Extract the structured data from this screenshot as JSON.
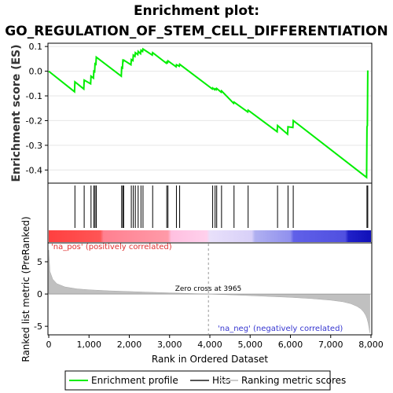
{
  "title_line1": "Enrichment plot:",
  "title_line2": "GO_REGULATION_OF_STEM_CELL_DIFFERENTIATION",
  "es_ylabel": "Enrichment score (ES)",
  "metric_ylabel": "Ranked list metric (PreRanked)",
  "xlabel": "Rank in Ordered Dataset",
  "pos_label": "'na_pos' (positively correlated)",
  "neg_label": "'na_neg' (negatively correlated)",
  "zero_cross_label": "Zero cross at 3965",
  "legend": {
    "enrichment": "Enrichment profile",
    "hits": "Hits",
    "ranking": "Ranking metric scores"
  },
  "colors": {
    "enrichment_line": "#00ee00",
    "hits": "#000000",
    "metric_fill": "#c0c0c0"
  },
  "chart_data": {
    "type": "line",
    "x_range": [
      0,
      8000
    ],
    "x_ticks": [
      "0",
      "1,000",
      "2,000",
      "3,000",
      "4,000",
      "5,000",
      "6,000",
      "7,000",
      "8,000"
    ],
    "es_range": [
      -0.45,
      0.11
    ],
    "es_ticks": [
      "0.1",
      "0.0",
      "-0.1",
      "-0.2",
      "-0.3",
      "-0.4"
    ],
    "metric_range": [
      -6.2,
      7.8
    ],
    "metric_ticks": [
      "5",
      "0",
      "-5"
    ],
    "zero_cross": 3965,
    "hit_ranks": [
      650,
      880,
      1050,
      1120,
      1150,
      1180,
      1810,
      1840,
      1860,
      2050,
      2100,
      2150,
      2220,
      2290,
      2340,
      2580,
      2930,
      2960,
      3170,
      3250,
      4070,
      4130,
      4170,
      4290,
      4600,
      4950,
      5680,
      5940,
      6070,
      7900,
      7920
    ],
    "enrichment_profile": {
      "x": [
        0,
        640,
        650,
        870,
        880,
        1040,
        1050,
        1110,
        1120,
        1140,
        1150,
        1170,
        1180,
        1800,
        1810,
        1830,
        1840,
        1850,
        1860,
        2040,
        2050,
        2090,
        2100,
        2140,
        2150,
        2210,
        2220,
        2280,
        2290,
        2330,
        2340,
        2570,
        2580,
        2920,
        2930,
        2950,
        2960,
        3160,
        3170,
        3240,
        3250,
        4060,
        4070,
        4120,
        4130,
        4160,
        4170,
        4280,
        4290,
        4590,
        4600,
        4940,
        4950,
        5670,
        5680,
        5930,
        5940,
        6060,
        6070,
        7890,
        7900,
        7910,
        7920
      ],
      "y": [
        0.0,
        -0.083,
        -0.043,
        -0.072,
        -0.036,
        -0.051,
        -0.02,
        -0.028,
        0.0,
        -0.002,
        0.03,
        0.028,
        0.057,
        -0.02,
        0.015,
        0.013,
        0.042,
        0.04,
        0.045,
        0.026,
        0.047,
        0.043,
        0.065,
        0.06,
        0.075,
        0.067,
        0.08,
        0.071,
        0.085,
        0.08,
        0.09,
        0.065,
        0.075,
        0.032,
        0.037,
        0.035,
        0.042,
        0.018,
        0.026,
        0.02,
        0.028,
        -0.072,
        -0.068,
        -0.075,
        -0.071,
        -0.075,
        -0.07,
        -0.085,
        -0.08,
        -0.13,
        -0.125,
        -0.165,
        -0.158,
        -0.245,
        -0.22,
        -0.255,
        -0.225,
        -0.228,
        -0.2,
        -0.43,
        -0.225,
        -0.22,
        0.003
      ]
    },
    "metric_profile": {
      "x": [
        0,
        30,
        100,
        200,
        400,
        700,
        1000,
        1500,
        2000,
        2500,
        3000,
        3500,
        3965,
        4500,
        5000,
        5500,
        6000,
        6500,
        7000,
        7300,
        7500,
        7650,
        7750,
        7820,
        7870,
        7900,
        7930,
        7950,
        7970
      ],
      "y": [
        6.8,
        3.5,
        2.3,
        1.6,
        1.1,
        0.8,
        0.65,
        0.5,
        0.38,
        0.28,
        0.18,
        0.08,
        0.0,
        -0.12,
        -0.25,
        -0.38,
        -0.52,
        -0.7,
        -0.95,
        -1.2,
        -1.5,
        -1.9,
        -2.3,
        -2.8,
        -3.3,
        -3.8,
        -4.5,
        -5.2,
        -6.0
      ]
    }
  }
}
